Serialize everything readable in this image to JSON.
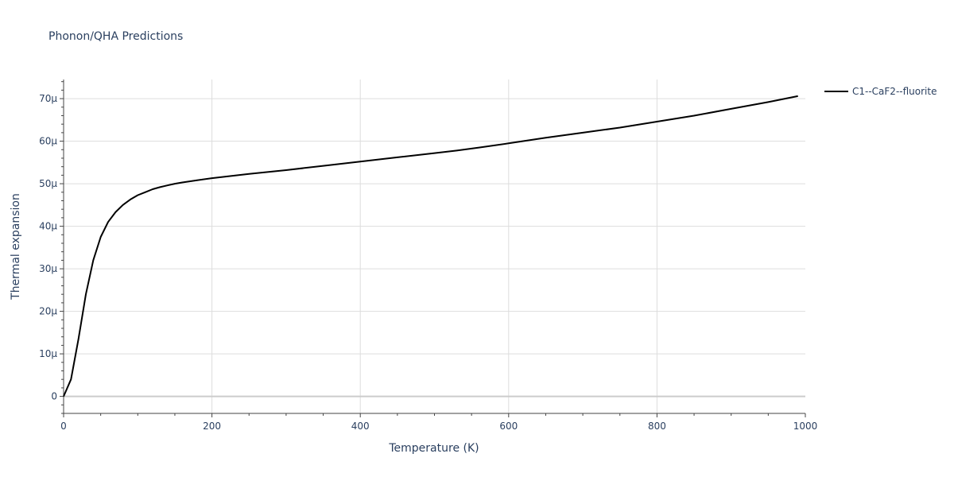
{
  "chart_data": {
    "type": "line",
    "title": "Phonon/QHA Predictions",
    "xlabel": "Temperature (K)",
    "ylabel": "Thermal expansion",
    "xlim": [
      0,
      1000
    ],
    "ylim": [
      -4,
      74.5
    ],
    "y_unit_suffix": "μ",
    "x_ticks": [
      0,
      200,
      400,
      600,
      800,
      1000
    ],
    "y_ticks": [
      0,
      10,
      20,
      30,
      40,
      50,
      60,
      70
    ],
    "grid": true,
    "legend_position": "top-right",
    "series": [
      {
        "name": "C1--CaF2--fluorite",
        "color": "#000000",
        "x": [
          0,
          10,
          20,
          30,
          40,
          50,
          60,
          70,
          80,
          90,
          100,
          110,
          120,
          130,
          140,
          150,
          160,
          180,
          200,
          250,
          300,
          350,
          400,
          450,
          500,
          530,
          560,
          600,
          650,
          700,
          750,
          800,
          850,
          900,
          950,
          990
        ],
        "y": [
          0,
          4,
          13.5,
          24,
          32,
          37.5,
          41,
          43.3,
          45,
          46.3,
          47.3,
          48,
          48.7,
          49.2,
          49.6,
          50,
          50.3,
          50.8,
          51.3,
          52.3,
          53.2,
          54.2,
          55.2,
          56.2,
          57.2,
          57.8,
          58.5,
          59.5,
          60.8,
          62,
          63.2,
          64.6,
          66,
          67.6,
          69.2,
          70.6
        ]
      }
    ]
  }
}
